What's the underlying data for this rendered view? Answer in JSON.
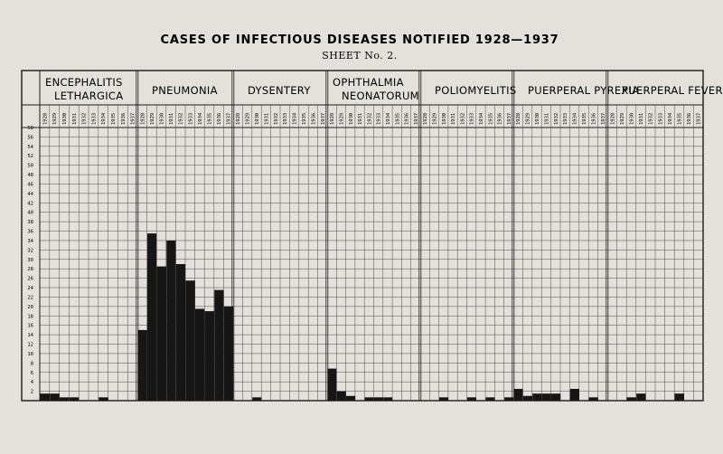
{
  "title": "CASES OF INFECTIOUS DISEASES NOTIFIED 1928—1937",
  "subtitle": "SHEET No. 2.",
  "chart_data": {
    "type": "bar",
    "categories": [
      "1928",
      "1929",
      "1930",
      "1931",
      "1932",
      "1933",
      "1934",
      "1935",
      "1936",
      "1937"
    ],
    "ylim": [
      0,
      58
    ],
    "yticks": [
      2,
      4,
      6,
      8,
      10,
      12,
      14,
      16,
      18,
      20,
      22,
      24,
      26,
      28,
      30,
      32,
      34,
      36,
      38,
      40,
      42,
      44,
      46,
      48,
      50,
      52,
      54,
      56,
      58
    ],
    "ytick_labels": [
      "2",
      "4",
      "6",
      "8",
      "10",
      "12",
      "14",
      "16",
      "18",
      "20",
      "22",
      "24",
      "26",
      "28",
      "30",
      "32",
      "34",
      "36",
      "38",
      "40",
      "42",
      "44",
      "46",
      "48",
      "50",
      "52",
      "54",
      "56",
      "58"
    ],
    "grid": true,
    "bar_color": "#161616",
    "panels": [
      {
        "title_lines": [
          "ENCEPHALITIS",
          "LETHARGICA"
        ],
        "values": [
          1.5,
          1.5,
          0.7,
          0.7,
          0,
          0,
          0.7,
          0,
          0,
          0
        ]
      },
      {
        "title_lines": [
          "PNEUMONIA"
        ],
        "values": [
          15,
          35.5,
          28.5,
          34,
          29,
          25.5,
          19.5,
          19,
          23.5,
          20
        ]
      },
      {
        "title_lines": [
          "DYSENTERY"
        ],
        "values": [
          0,
          0,
          0.7,
          0,
          0,
          0,
          0,
          0,
          0,
          0
        ]
      },
      {
        "title_lines": [
          "OPHTHALMIA",
          "NEONATORUM"
        ],
        "values": [
          6.8,
          2,
          1,
          0,
          0.7,
          0.7,
          0.7,
          0,
          0,
          0
        ]
      },
      {
        "title_lines": [
          "POLIOMYELITIS"
        ],
        "values": [
          0,
          0,
          0.7,
          0,
          0,
          0.7,
          0,
          0.7,
          0,
          0.7
        ]
      },
      {
        "title_lines": [
          "PUERPERAL PYREXIA"
        ],
        "values": [
          2.5,
          1,
          1.5,
          1.5,
          1.5,
          0,
          2.5,
          0,
          0.7,
          0
        ]
      },
      {
        "title_lines": [
          "PUERPERAL FEVER"
        ],
        "values": [
          0,
          0,
          0.7,
          1.5,
          0,
          0,
          0,
          1.5,
          0,
          0
        ]
      }
    ]
  }
}
